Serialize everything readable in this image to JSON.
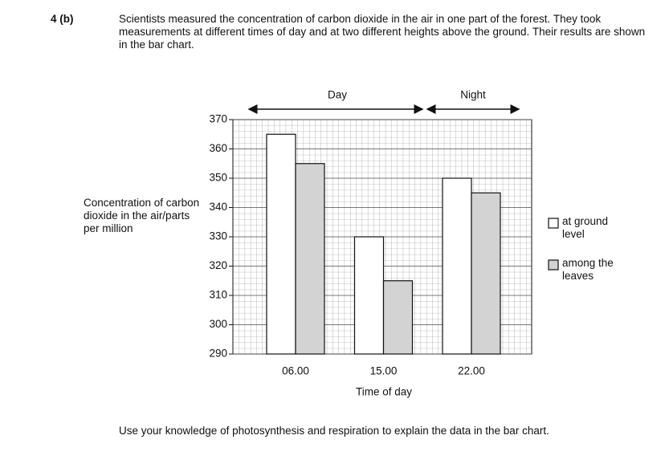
{
  "question": {
    "number": "4 (b)",
    "intro": "Scientists measured the concentration of carbon dioxide in the air in one part of the forest.  They took measurements at different times of day and at two different heights above the ground.  Their results are shown in the bar chart.",
    "prompt": "Use your knowledge of photosynthesis and respiration to explain the data in the bar chart."
  },
  "chart_data": {
    "type": "bar",
    "y_label": "Concentration of carbon dioxide in the air/parts per million",
    "x_label": "Time of day",
    "annotations": [
      "Day",
      "Night"
    ],
    "categories": [
      "06.00",
      "15.00",
      "22.00"
    ],
    "series": [
      {
        "name": "at ground level",
        "color": "#ffffff",
        "values": [
          365,
          330,
          350
        ]
      },
      {
        "name": "among the leaves",
        "color": "#d3d3d3",
        "values": [
          355,
          315,
          345
        ]
      }
    ],
    "ylim": [
      290,
      370
    ],
    "yticks": [
      290,
      300,
      310,
      320,
      330,
      340,
      350,
      360,
      370
    ],
    "grid": true,
    "legend": "right"
  }
}
